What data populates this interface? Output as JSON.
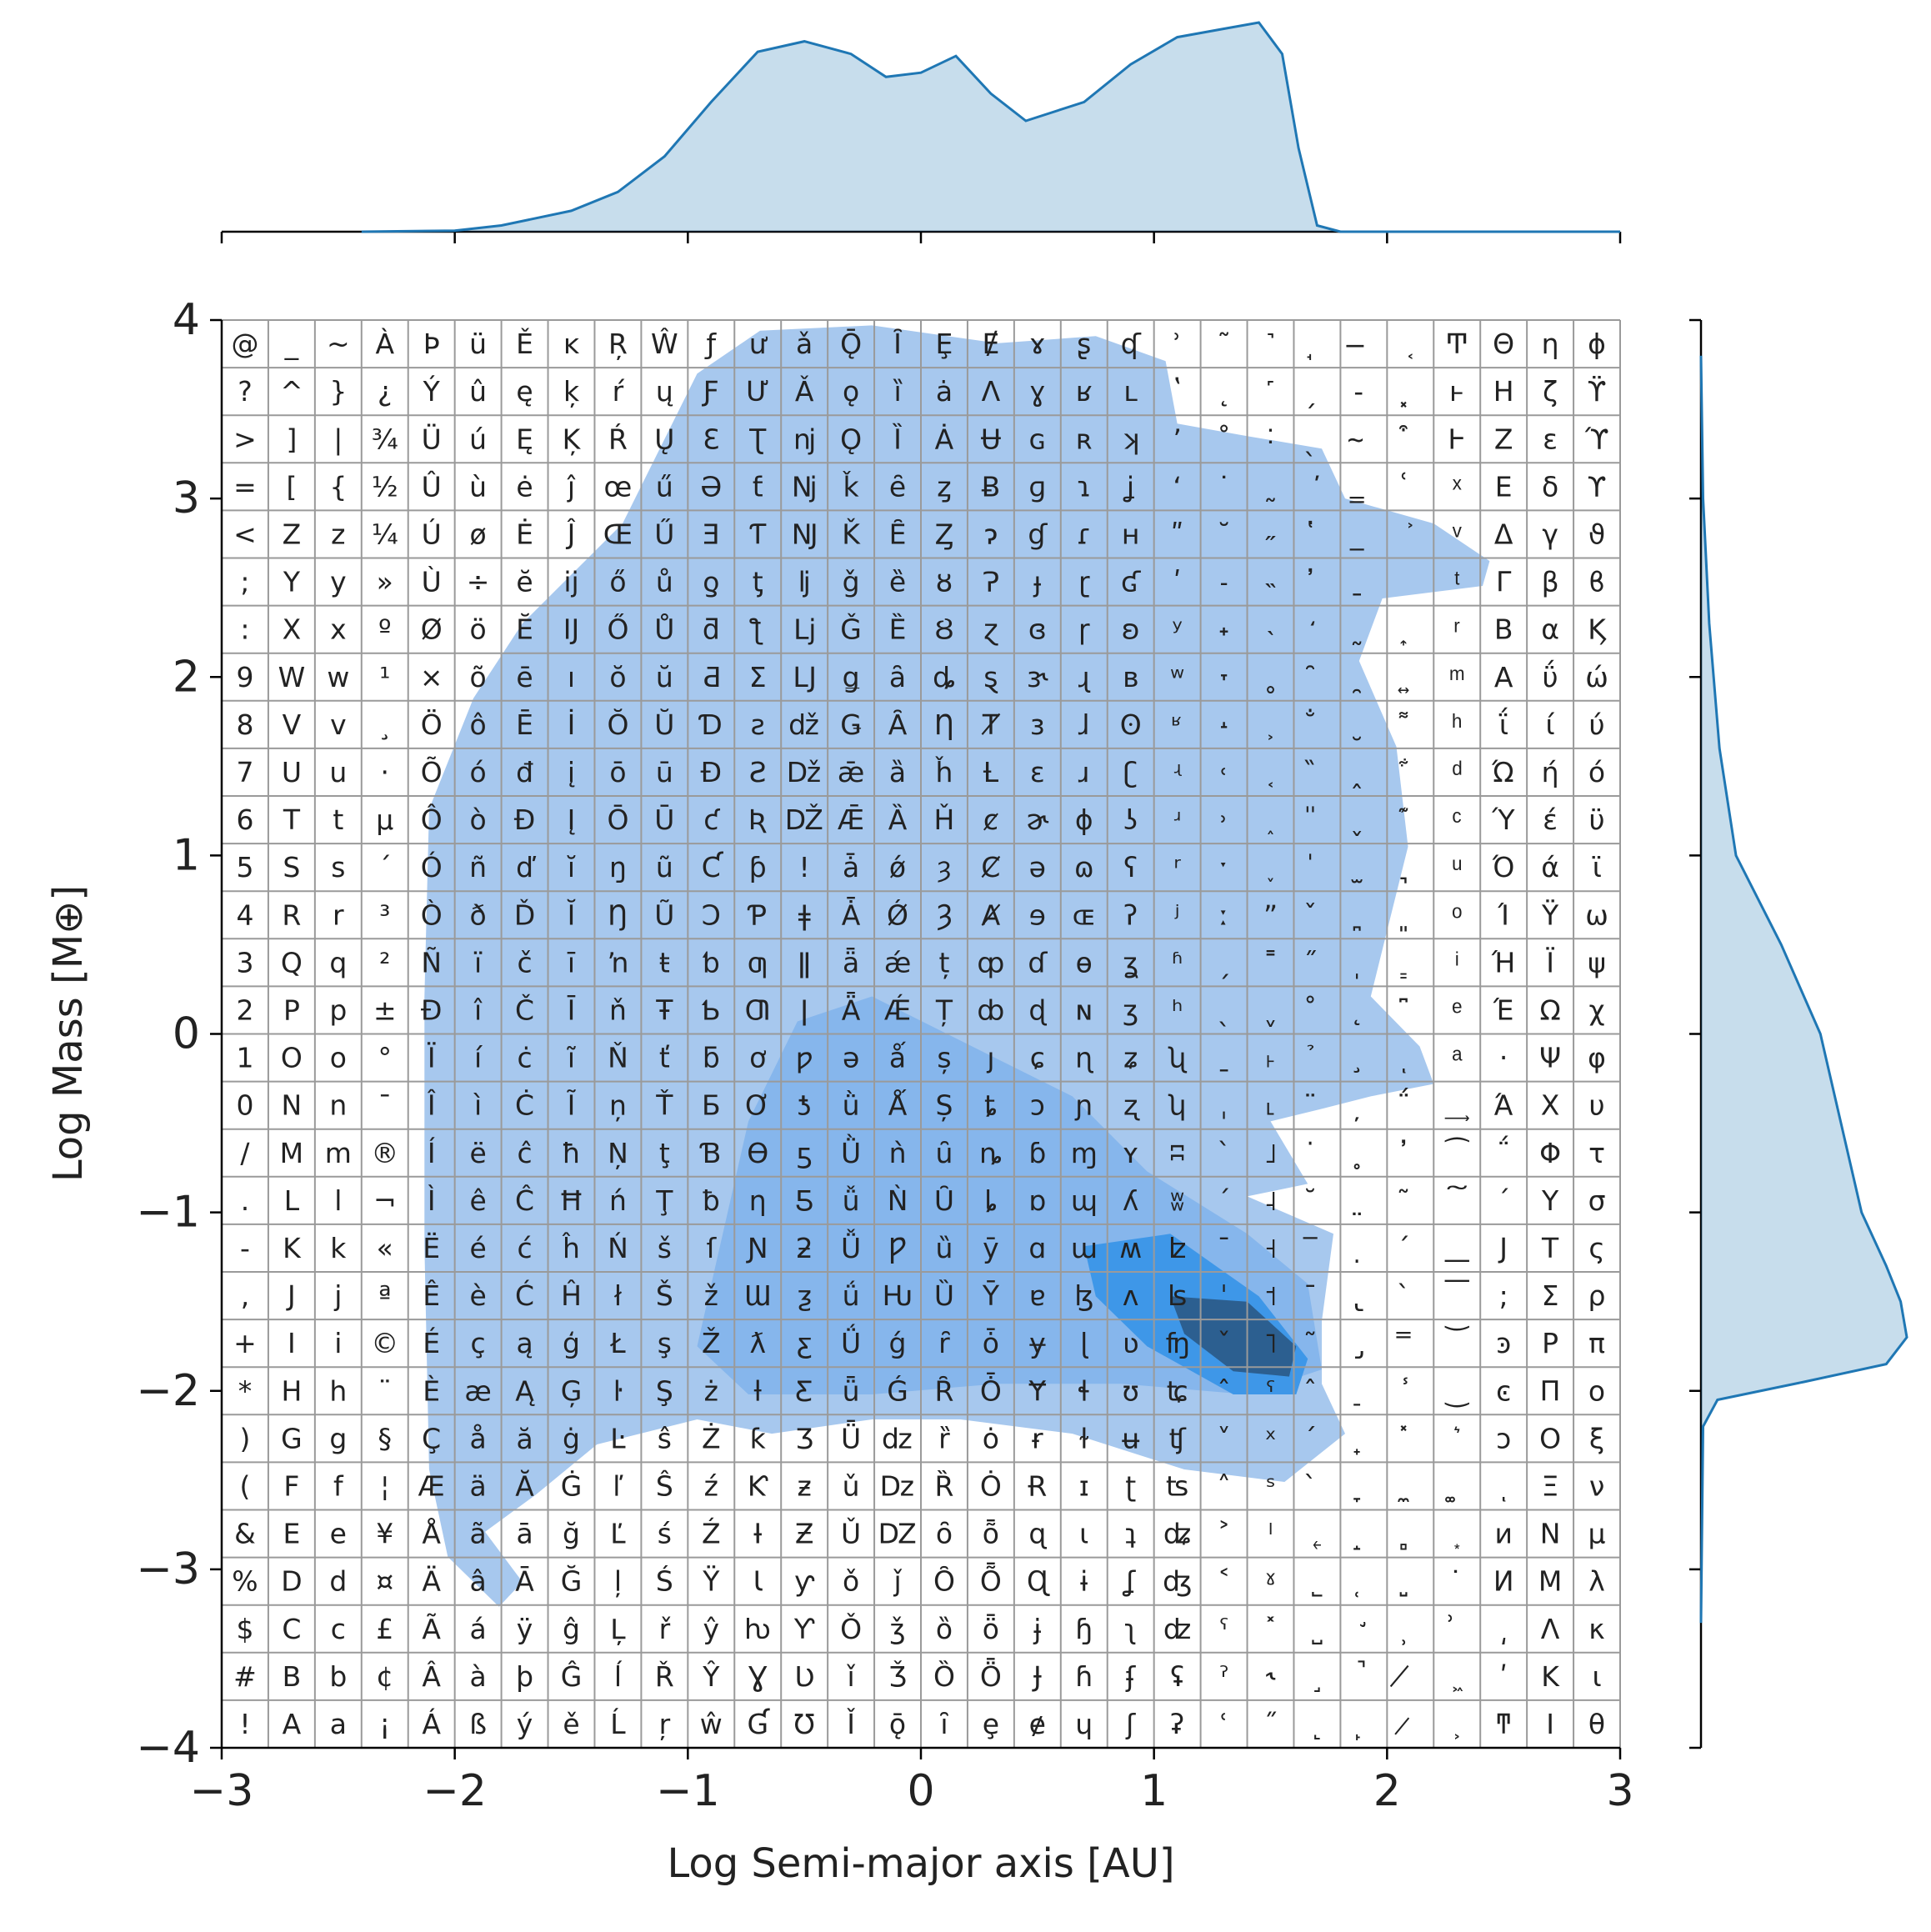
{
  "chart_data": {
    "type": "kde-joint",
    "x_label": "Log Semi-major axis [AU]",
    "y_label": "Log Mass [M⊕]",
    "xlim": [
      -3,
      3
    ],
    "xticks": [
      {
        "value": -3,
        "label": "−3"
      },
      {
        "value": -2,
        "label": "−2"
      },
      {
        "value": -1,
        "label": "−1"
      },
      0,
      1,
      2,
      3
    ],
    "ylim": [
      -4,
      4
    ],
    "yticks": [
      {
        "value": -4,
        "label": "−4"
      },
      {
        "value": -3,
        "label": "−3"
      },
      {
        "value": -2,
        "label": "−2"
      },
      {
        "value": -1,
        "label": "−1"
      },
      0,
      1,
      2,
      3,
      4
    ],
    "density_lim": [
      0,
      1
    ],
    "contours": [
      {
        "color": "#a7c8ee",
        "x": [
          -1.28,
          -0.96,
          -0.69,
          -0.21,
          0.33,
          0.75,
          1.05,
          1.1,
          1.4,
          1.72,
          1.82,
          2.2,
          2.44,
          2.41,
          1.98,
          1.88,
          2.04,
          2.09,
          2.01,
          1.93,
          2.14,
          2.2,
          1.93,
          1.72,
          1.5,
          1.66,
          1.4,
          1.77,
          1.72,
          1.72,
          1.82,
          1.56,
          1.13,
          0.65,
          0.17,
          -0.21,
          -0.64,
          -0.96,
          -1.39,
          -1.65,
          -1.87,
          -1.71,
          -1.81,
          -2.03,
          -2.11,
          -2.13,
          -2.13,
          -2.11,
          -1.92,
          -1.71
        ],
        "y": [
          2.86,
          3.7,
          3.94,
          3.97,
          3.87,
          3.91,
          3.77,
          3.42,
          3.35,
          3.28,
          3.0,
          2.86,
          2.65,
          2.51,
          2.44,
          2.09,
          1.61,
          1.05,
          0.63,
          0.21,
          -0.07,
          -0.28,
          -0.35,
          -0.42,
          -0.49,
          -0.84,
          -0.91,
          -1.12,
          -1.61,
          -1.96,
          -2.24,
          -2.51,
          -2.44,
          -2.24,
          -2.16,
          -2.16,
          -2.24,
          -2.16,
          -2.3,
          -2.58,
          -2.79,
          -3.07,
          -3.21,
          -2.93,
          -2.44,
          -1.19,
          0.21,
          1.26,
          1.88,
          2.3
        ]
      },
      {
        "color": "#86b6ec",
        "x": [
          -0.96,
          -0.74,
          -0.53,
          -0.21,
          0.22,
          0.65,
          0.97,
          1.4,
          1.66,
          1.72,
          1.4,
          0.86,
          0.33,
          -0.21,
          -0.74
        ],
        "y": [
          -1.75,
          -0.49,
          0.07,
          0.21,
          -0.07,
          -0.35,
          -0.77,
          -1.12,
          -1.4,
          -1.88,
          -2.02,
          -1.96,
          -1.96,
          -2.02,
          -2.02
        ]
      },
      {
        "color": "#3e97e8",
        "x": [
          0.7,
          1.07,
          1.45,
          1.66,
          1.61,
          1.34,
          0.97,
          0.75
        ],
        "y": [
          -1.19,
          -1.12,
          -1.47,
          -1.82,
          -2.02,
          -2.02,
          -1.75,
          -1.47
        ]
      },
      {
        "color": "#2c5f90",
        "x": [
          1.07,
          1.4,
          1.61,
          1.58,
          1.34,
          1.13
        ],
        "y": [
          -1.47,
          -1.5,
          -1.75,
          -1.92,
          -1.89,
          -1.68
        ]
      }
    ],
    "marginal_x": {
      "color": "#1f77b4",
      "x": [
        -2.4,
        -2,
        -1.8,
        -1.5,
        -1.3,
        -1.1,
        -0.9,
        -0.7,
        -0.5,
        -0.3,
        -0.15,
        0,
        0.15,
        0.3,
        0.45,
        0.7,
        0.9,
        1.1,
        1.3,
        1.45,
        1.55,
        1.62,
        1.7,
        1.8,
        2.2,
        3
      ],
      "values": [
        0,
        0.005,
        0.03,
        0.1,
        0.19,
        0.36,
        0.62,
        0.86,
        0.91,
        0.85,
        0.74,
        0.76,
        0.84,
        0.66,
        0.53,
        0.62,
        0.8,
        0.93,
        0.97,
        1.0,
        0.85,
        0.4,
        0.03,
        0,
        0,
        0
      ]
    },
    "marginal_y": {
      "color": "#1f77b4",
      "y": [
        3.8,
        3,
        2.3,
        1.6,
        1,
        0.5,
        0,
        -0.5,
        -1,
        -1.3,
        -1.5,
        -1.7,
        -1.85,
        -1.95,
        -2.05,
        -2.2,
        -3.3
      ],
      "values": [
        0,
        0.01,
        0.04,
        0.09,
        0.17,
        0.39,
        0.58,
        0.68,
        0.78,
        0.9,
        0.97,
        1.0,
        0.9,
        0.5,
        0.08,
        0.01,
        0
      ]
    },
    "glyph_columns": [
      [
        "!",
        "#",
        "$",
        "%",
        "&",
        "(",
        ")",
        "*",
        "+",
        ",",
        "-",
        ".",
        "/",
        "0",
        "1",
        "2",
        "3",
        "4",
        "5",
        "6",
        "7",
        "8",
        "9",
        ":",
        ";",
        "<",
        "=",
        ">",
        "?",
        "@"
      ],
      [
        "A",
        "B",
        "C",
        "D",
        "E",
        "F",
        "G",
        "H",
        "I",
        "J",
        "K",
        "L",
        "M",
        "N",
        "O",
        "P",
        "Q",
        "R",
        "S",
        "T",
        "U",
        "V",
        "W",
        "X",
        "Y",
        "Z",
        "[",
        "]",
        "^",
        "_"
      ],
      [
        "a",
        "b",
        "c",
        "d",
        "e",
        "f",
        "g",
        "h",
        "i",
        "j",
        "k",
        "l",
        "m",
        "n",
        "o",
        "p",
        "q",
        "r",
        "s",
        "t",
        "u",
        "v",
        "w",
        "x",
        "y",
        "z",
        "{",
        "|",
        "}",
        "~"
      ],
      [
        "¡",
        "¢",
        "£",
        "¤",
        "¥",
        "¦",
        "§",
        "¨",
        "©",
        "ª",
        "«",
        "¬",
        "®",
        "¯",
        "°",
        "±",
        "²",
        "³",
        "´",
        "µ",
        "·",
        "¸",
        "¹",
        "º",
        "»",
        "¼",
        "½",
        "¾",
        "¿",
        "À"
      ],
      [
        "Á",
        "Â",
        "Ã",
        "Ä",
        "Å",
        "Æ",
        "Ç",
        "È",
        "É",
        "Ê",
        "Ë",
        "Ì",
        "Í",
        "Î",
        "Ï",
        "Ð",
        "Ñ",
        "Ò",
        "Ó",
        "Ô",
        "Õ",
        "Ö",
        "×",
        "Ø",
        "Ù",
        "Ú",
        "Û",
        "Ü",
        "Ý",
        "Þ"
      ],
      [
        "ß",
        "à",
        "á",
        "â",
        "ã",
        "ä",
        "å",
        "æ",
        "ç",
        "è",
        "é",
        "ê",
        "ë",
        "ì",
        "í",
        "î",
        "ï",
        "ð",
        "ñ",
        "ò",
        "ó",
        "ô",
        "õ",
        "ö",
        "÷",
        "ø",
        "ù",
        "ú",
        "û",
        "ü"
      ],
      [
        "ý",
        "þ",
        "ÿ",
        "Ā",
        "ā",
        "Ă",
        "ă",
        "Ą",
        "ą",
        "Ć",
        "ć",
        "Ĉ",
        "ĉ",
        "Ċ",
        "ċ",
        "Č",
        "č",
        "Ď",
        "ď",
        "Đ",
        "đ",
        "Ē",
        "ē",
        "Ĕ",
        "ĕ",
        "Ė",
        "ė",
        "Ę",
        "ę",
        "Ě"
      ],
      [
        "ě",
        "Ĝ",
        "ĝ",
        "Ğ",
        "ğ",
        "Ġ",
        "ġ",
        "Ģ",
        "ģ",
        "Ĥ",
        "ĥ",
        "Ħ",
        "ħ",
        "Ĩ",
        "ĩ",
        "Ī",
        "ī",
        "Ĭ",
        "ĭ",
        "Į",
        "į",
        "İ",
        "ı",
        "Ĳ",
        "ĳ",
        "Ĵ",
        "ĵ",
        "Ķ",
        "ķ",
        "ĸ"
      ],
      [
        "Ĺ",
        "ĺ",
        "Ļ",
        "ļ",
        "Ľ",
        "ľ",
        "Ŀ",
        "ŀ",
        "Ł",
        "ł",
        "Ń",
        "ń",
        "Ņ",
        "ņ",
        "Ň",
        "ň",
        "ŉ",
        "Ŋ",
        "ŋ",
        "Ō",
        "ō",
        "Ŏ",
        "ŏ",
        "Ő",
        "ő",
        "Œ",
        "œ",
        "Ŕ",
        "ŕ",
        "Ŗ"
      ],
      [
        "ŗ",
        "Ř",
        "ř",
        "Ś",
        "ś",
        "Ŝ",
        "ŝ",
        "Ş",
        "ş",
        "Š",
        "š",
        "Ţ",
        "ţ",
        "Ť",
        "ť",
        "Ŧ",
        "ŧ",
        "Ũ",
        "ũ",
        "Ū",
        "ū",
        "Ŭ",
        "ŭ",
        "Ů",
        "ů",
        "Ű",
        "ű",
        "Ų",
        "ų",
        "Ŵ"
      ],
      [
        "ŵ",
        "Ŷ",
        "ŷ",
        "Ÿ",
        "Ź",
        "ź",
        "Ż",
        "ż",
        "Ž",
        "ž",
        "ſ",
        "ƀ",
        "Ɓ",
        "Ƃ",
        "ƃ",
        "Ƅ",
        "ƅ",
        "Ɔ",
        "Ƈ",
        "ƈ",
        "Ɖ",
        "Ɗ",
        "Ƌ",
        "ƌ",
        "ƍ",
        "Ǝ",
        "Ə",
        "Ɛ",
        "Ƒ",
        "ƒ"
      ],
      [
        "Ɠ",
        "Ɣ",
        "ƕ",
        "Ɩ",
        "Ɨ",
        "Ƙ",
        "ƙ",
        "ƚ",
        "ƛ",
        "Ɯ",
        "Ɲ",
        "ƞ",
        "Ɵ",
        "Ơ",
        "ơ",
        "Ƣ",
        "ƣ",
        "Ƥ",
        "ƥ",
        "Ʀ",
        "Ƨ",
        "ƨ",
        "Ʃ",
        "ƪ",
        "ƫ",
        "Ƭ",
        "ƭ",
        "Ʈ",
        "Ư",
        "ư"
      ],
      [
        "Ʊ",
        "Ʋ",
        "Ƴ",
        "ƴ",
        "Ƶ",
        "ƶ",
        "Ʒ",
        "Ƹ",
        "ƹ",
        "ƺ",
        "ƻ",
        "Ƽ",
        "ƽ",
        "ƾ",
        "ƿ",
        "ǀ",
        "ǁ",
        "ǂ",
        "ǃ",
        "Ǆ",
        "ǅ",
        "ǆ",
        "Ǉ",
        "ǈ",
        "ǉ",
        "Ǌ",
        "ǋ",
        "ǌ",
        "Ǎ",
        "ǎ"
      ],
      [
        "Ǐ",
        "ǐ",
        "Ǒ",
        "ǒ",
        "Ǔ",
        "ǔ",
        "Ǖ",
        "ǖ",
        "Ǘ",
        "ǘ",
        "Ǚ",
        "ǚ",
        "Ǜ",
        "ǜ",
        "ǝ",
        "Ǟ",
        "ǟ",
        "Ǡ",
        "ǡ",
        "Ǣ",
        "ǣ",
        "Ǥ",
        "ǥ",
        "Ǧ",
        "ǧ",
        "Ǩ",
        "ǩ",
        "Ǫ",
        "ǫ",
        "Ǭ"
      ],
      [
        "ǭ",
        "Ǯ",
        "ǯ",
        "ǰ",
        "Ǳ",
        "ǲ",
        "ǳ",
        "Ǵ",
        "ǵ",
        "Ƕ",
        "Ƿ",
        "Ǹ",
        "ǹ",
        "Ǻ",
        "ǻ",
        "Ǽ",
        "ǽ",
        "Ǿ",
        "ǿ",
        "Ȁ",
        "ȁ",
        "Ȃ",
        "ȃ",
        "Ȅ",
        "ȅ",
        "Ȇ",
        "ȇ",
        "Ȉ",
        "ȉ",
        "Ȋ"
      ],
      [
        "ȋ",
        "Ȍ",
        "ȍ",
        "Ȏ",
        "ȏ",
        "Ȑ",
        "ȑ",
        "Ȓ",
        "ȓ",
        "Ȕ",
        "ȕ",
        "Ȗ",
        "ȗ",
        "Ș",
        "ș",
        "Ț",
        "ț",
        "Ȝ",
        "ȝ",
        "Ȟ",
        "ȟ",
        "Ƞ",
        "ȡ",
        "Ȣ",
        "ȣ",
        "Ȥ",
        "ȥ",
        "Ȧ",
        "ȧ",
        "Ȩ"
      ],
      [
        "ȩ",
        "Ȫ",
        "ȫ",
        "Ȭ",
        "ȭ",
        "Ȯ",
        "ȯ",
        "Ȱ",
        "ȱ",
        "Ȳ",
        "ȳ",
        "ȴ",
        "ȵ",
        "ȶ",
        "ȷ",
        "ȸ",
        "ȹ",
        "Ⱥ",
        "Ȼ",
        "ȼ",
        "Ƚ",
        "Ⱦ",
        "ȿ",
        "ɀ",
        "Ɂ",
        "ɂ",
        "Ƀ",
        "Ʉ",
        "Ʌ",
        "Ɇ"
      ],
      [
        "ɇ",
        "Ɉ",
        "ɉ",
        "Ɋ",
        "ɋ",
        "Ɍ",
        "ɍ",
        "Ɏ",
        "ɏ",
        "ɐ",
        "ɑ",
        "ɒ",
        "ɓ",
        "ɔ",
        "ɕ",
        "ɖ",
        "ɗ",
        "ɘ",
        "ə",
        "ɚ",
        "ɛ",
        "ɜ",
        "ɝ",
        "ɞ",
        "ɟ",
        "ɠ",
        "ɡ",
        "ɢ",
        "ɣ",
        "ɤ"
      ],
      [
        "ɥ",
        "ɦ",
        "ɧ",
        "ɨ",
        "ɩ",
        "ɪ",
        "ɫ",
        "ɬ",
        "ɭ",
        "ɮ",
        "ɯ",
        "ɰ",
        "ɱ",
        "ɲ",
        "ɳ",
        "ɴ",
        "ɵ",
        "ɶ",
        "ɷ",
        "ɸ",
        "ɹ",
        "ɺ",
        "ɻ",
        "ɼ",
        "ɽ",
        "ɾ",
        "ɿ",
        "ʀ",
        "ʁ",
        "ʂ"
      ],
      [
        "ʃ",
        "ʄ",
        "ʅ",
        "ʆ",
        "ʇ",
        "ʈ",
        "ʉ",
        "ʊ",
        "ʋ",
        "ʌ",
        "ʍ",
        "ʎ",
        "ʏ",
        "ʐ",
        "ʑ",
        "ʒ",
        "ʓ",
        "ʔ",
        "ʕ",
        "ʖ",
        "ʗ",
        "ʘ",
        "ʙ",
        "ʚ",
        "ʛ",
        "ʜ",
        "ʝ",
        "ʞ",
        "ʟ",
        "ʠ"
      ],
      [
        "ʡ",
        "ʢ",
        "ʣ",
        "ʤ",
        "ʥ",
        "ʦ",
        "ʧ",
        "ʨ",
        "ʩ",
        "ʪ",
        "ʫ",
        "ʬ",
        "ʭ",
        "ʮ",
        "ʯ",
        "ʰ",
        "ʱ",
        "ʲ",
        "ʳ",
        "ʴ",
        "ʵ",
        "ʶ",
        "ʷ",
        "ʸ",
        "ʹ",
        "ʺ",
        "ʻ",
        "ʼ",
        "ʽ",
        "ʾ"
      ],
      [
        "ʿ",
        "ˀ",
        "ˁ",
        "˂",
        "˃",
        "˄",
        "˅",
        "ˆ",
        "ˇ",
        "ˈ",
        "ˉ",
        "ˊ",
        "ˋ",
        "ˌ",
        "ˍ",
        "ˎ",
        "ˏ",
        "ː",
        "ˑ",
        "˒",
        "˓",
        "˔",
        "˕",
        "˖",
        "˗",
        "˘",
        "˙",
        "˚",
        "˛",
        "˜"
      ],
      [
        "˝",
        "˞",
        "˟",
        "ˠ",
        "ˡ",
        "ˢ",
        "ˣ",
        "ˤ",
        "˥",
        "˦",
        "˧",
        "˨",
        "˩",
        "˪",
        "˫",
        "ˬ",
        "˭",
        "ˮ",
        "˯",
        "˰",
        "˱",
        "˲",
        "˳",
        "˴",
        "˵",
        "˶",
        "˷",
        "˸",
        "˹",
        "˺"
      ],
      [
        "˻",
        "˼",
        "˽",
        "˾",
        "˿",
        "̀",
        "́",
        "̂",
        "̃",
        "̄",
        "̅",
        "̆",
        "̇",
        "̈",
        "̉",
        "̊",
        "̋",
        "̌",
        "̍",
        "̎",
        "̏",
        "̐",
        "̑",
        "̒",
        "̓",
        "̔",
        "̕",
        "̖",
        "̗",
        "̘"
      ],
      [
        "̙",
        "̚",
        "̛",
        "̜",
        "̝",
        "̞",
        "̟",
        "̠",
        "̡",
        "̢",
        "̣",
        "̤",
        "̥",
        "̦",
        "̧",
        "̨",
        "̩",
        "̪",
        "̫",
        "̬",
        "̭",
        "̮",
        "̯",
        "̰",
        "̱",
        "̲",
        "̳",
        "̴",
        "̵",
        "̶"
      ],
      [
        "̷",
        "̸",
        "̹",
        "̺",
        "̻",
        "̼",
        "̽",
        "̾",
        "̿",
        "̀",
        "́",
        "͂",
        "̓",
        "̈́",
        "ͅ",
        "͆",
        "͇",
        "͈",
        "͉",
        "͊",
        "͋",
        "͌",
        "͍",
        "͎",
        "͏",
        "͐",
        "͑",
        "͒",
        "͓",
        "͔"
      ],
      [
        "͕",
        "͖",
        "͗",
        "͘",
        "͙",
        "͚",
        "͛",
        "͜",
        "͝",
        "͞",
        "͟",
        "͠",
        "͡",
        "͢",
        "ͣ",
        "ͤ",
        "ͥ",
        "ͦ",
        "ͧ",
        "ͨ",
        "ͩ",
        "ͪ",
        "ͫ",
        "ͬ",
        "ͭ",
        "ͮ",
        "ͯ",
        "Ͱ",
        "ͱ",
        "Ͳ"
      ],
      [
        "ͳ",
        "ʹ",
        "͵",
        "Ͷ",
        "ͷ",
        "ͺ",
        "ͻ",
        "ͼ",
        "ͽ",
        ";",
        "Ϳ",
        "΄",
        "΅",
        "Ά",
        "·",
        "Έ",
        "Ή",
        "Ί",
        "Ό",
        "Ύ",
        "Ώ",
        "ΐ",
        "Α",
        "Β",
        "Γ",
        "Δ",
        "Ε",
        "Ζ",
        "Η",
        "Θ"
      ],
      [
        "Ι",
        "Κ",
        "Λ",
        "Μ",
        "Ν",
        "Ξ",
        "Ο",
        "Π",
        "Ρ",
        "Σ",
        "Τ",
        "Υ",
        "Φ",
        "Χ",
        "Ψ",
        "Ω",
        "Ϊ",
        "Ϋ",
        "ά",
        "έ",
        "ή",
        "ί",
        "ΰ",
        "α",
        "β",
        "γ",
        "δ",
        "ε",
        "ζ",
        "η"
      ],
      [
        "θ",
        "ι",
        "κ",
        "λ",
        "μ",
        "ν",
        "ξ",
        "ο",
        "π",
        "ρ",
        "ς",
        "σ",
        "τ",
        "υ",
        "φ",
        "χ",
        "ψ",
        "ω",
        "ϊ",
        "ϋ",
        "ό",
        "ύ",
        "ώ",
        "Ϗ",
        "ϐ",
        "ϑ",
        "ϒ",
        "ϓ",
        "ϔ",
        "ϕ"
      ]
    ]
  }
}
